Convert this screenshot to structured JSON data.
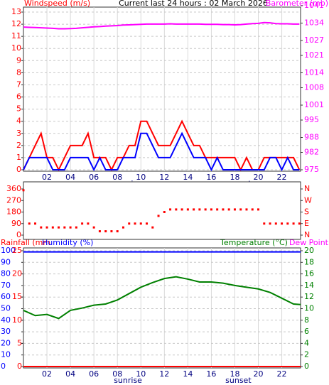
{
  "chart_data": [
    {
      "type": "line",
      "title": "Current last 24 hours : 02 March 2026",
      "ylabel": "Windspeed (m/s)",
      "y2label": "Barometer (mb)",
      "x": [
        0,
        0.5,
        1,
        1.5,
        2,
        2.5,
        3,
        3.5,
        4,
        4.5,
        5,
        5.5,
        6,
        6.5,
        7,
        7.5,
        8,
        8.5,
        9,
        9.5,
        10,
        10.5,
        11,
        11.5,
        12,
        12.5,
        13,
        13.5,
        14,
        14.5,
        15,
        15.5,
        16,
        16.5,
        17,
        17.5,
        18,
        18.5,
        19,
        19.5,
        20,
        20.5,
        21,
        21.5,
        22,
        22.5,
        23,
        23.5
      ],
      "series": [
        {
          "name": "Windspeed gust",
          "color": "#ff0000",
          "axis": "y",
          "values": [
            0,
            1,
            2,
            3,
            1,
            1,
            0,
            1,
            2,
            2,
            2,
            3,
            1,
            1,
            1,
            0,
            1,
            1,
            2,
            2,
            4,
            4,
            3,
            2,
            2,
            2,
            3,
            4,
            3,
            2,
            2,
            1,
            1,
            1,
            1,
            1,
            1,
            0,
            1,
            0,
            0,
            1,
            1,
            1,
            1,
            1,
            1,
            0
          ]
        },
        {
          "name": "Windspeed",
          "color": "#0000ff",
          "axis": "y",
          "values": [
            0,
            1,
            1,
            1,
            1,
            0,
            0,
            0,
            1,
            1,
            1,
            1,
            0,
            1,
            0,
            0,
            0,
            1,
            1,
            1,
            3,
            3,
            2,
            1,
            1,
            1,
            2,
            3,
            2,
            1,
            1,
            1,
            0,
            1,
            0,
            0,
            0,
            0,
            0,
            0,
            0,
            0,
            1,
            1,
            0,
            1,
            0,
            0
          ]
        },
        {
          "name": "Barometer",
          "color": "#ff00ff",
          "axis": "y2",
          "values": [
            1032.4,
            1032.3,
            1032.2,
            1032.1,
            1032.0,
            1031.9,
            1031.7,
            1031.7,
            1031.8,
            1031.9,
            1032.1,
            1032.3,
            1032.5,
            1032.6,
            1032.8,
            1032.9,
            1033.0,
            1033.2,
            1033.3,
            1033.4,
            1033.5,
            1033.6,
            1033.6,
            1033.6,
            1033.6,
            1033.7,
            1033.6,
            1033.6,
            1033.6,
            1033.6,
            1033.6,
            1033.5,
            1033.5,
            1033.5,
            1033.4,
            1033.4,
            1033.3,
            1033.4,
            1033.6,
            1033.8,
            1033.9,
            1034.2,
            1034.1,
            1033.8,
            1033.7,
            1033.7,
            1033.6,
            1033.6
          ]
        }
      ],
      "xlim": [
        0,
        23.6
      ],
      "xticks": [
        {
          "value": 2,
          "label": "02"
        },
        {
          "value": 4,
          "label": "04"
        },
        {
          "value": 6,
          "label": "06"
        },
        {
          "value": 8,
          "label": "08"
        },
        {
          "value": 10,
          "label": "10"
        },
        {
          "value": 12,
          "label": "12"
        },
        {
          "value": 14,
          "label": "14"
        },
        {
          "value": 16,
          "label": "16"
        },
        {
          "value": 18,
          "label": "18"
        },
        {
          "value": 20,
          "label": "20"
        },
        {
          "value": 22,
          "label": "22"
        }
      ],
      "ylim": [
        0,
        13
      ],
      "yticks": [
        0,
        1,
        2,
        3,
        4,
        5,
        6,
        7,
        8,
        9,
        10,
        11,
        12,
        13
      ],
      "ytick_color": "#ff0000",
      "y2lim": [
        975,
        1041
      ],
      "y2ticks": [
        975,
        982,
        988,
        995,
        1001,
        1008,
        1014,
        1021,
        1027,
        1034,
        1041
      ],
      "y2tick_color": "#ff00ff",
      "grid_axis": "y",
      "xgrid": true,
      "annotations": [
        {
          "text": "sunrise",
          "x": 8.9
        },
        {
          "text": "sunset",
          "x": 18.3
        }
      ]
    },
    {
      "type": "scatter",
      "x": [
        0,
        0.5,
        1,
        1.5,
        2,
        2.5,
        3,
        3.5,
        4,
        4.5,
        5,
        5.5,
        6,
        6.5,
        7,
        7.5,
        8,
        8.5,
        9,
        9.5,
        10,
        10.5,
        11,
        11.5,
        12,
        12.5,
        13,
        13.5,
        14,
        14.5,
        15,
        15.5,
        16,
        16.5,
        17,
        17.5,
        18,
        18.5,
        19,
        19.5,
        20,
        20.5,
        21,
        21.5,
        22,
        22.5,
        23,
        23.5
      ],
      "series": [
        {
          "name": "Wind direction",
          "color": "#ff0000",
          "axis": "y",
          "values": [
            350,
            90,
            90,
            60,
            60,
            60,
            60,
            60,
            60,
            60,
            90,
            90,
            60,
            30,
            30,
            30,
            30,
            60,
            90,
            90,
            90,
            90,
            60,
            150,
            180,
            200,
            200,
            200,
            200,
            200,
            200,
            200,
            200,
            200,
            200,
            200,
            200,
            200,
            200,
            200,
            200,
            90,
            90,
            90,
            90,
            90,
            90,
            90
          ]
        }
      ],
      "xlim": [
        0,
        23.6
      ],
      "ylim": [
        0,
        360
      ],
      "yticks": [
        0,
        90,
        180,
        270,
        360
      ],
      "ytick_color": "#ff0000",
      "y2lim": [
        0,
        360
      ],
      "y2ticks": [
        {
          "value": 0,
          "label": "N"
        },
        {
          "value": 90,
          "label": "E"
        },
        {
          "value": 180,
          "label": "S"
        },
        {
          "value": 270,
          "label": "W"
        },
        {
          "value": 360,
          "label": "N"
        }
      ],
      "y2tick_color": "#ff0000"
    },
    {
      "type": "line",
      "ylabel": "Humidity (%)",
      "y3label": "Rainfall (mm",
      "y2label": "Temperature (°C)",
      "dewpoint_label": "Dew Point",
      "x": [
        0,
        1,
        2,
        3,
        4,
        5,
        6,
        7,
        8,
        9,
        10,
        11,
        12,
        13,
        14,
        15,
        16,
        17,
        18,
        19,
        20,
        21,
        22,
        23,
        23.6
      ],
      "series": [
        {
          "name": "Humidity",
          "color": "#0000ff",
          "axis": "y",
          "values": [
            99,
            99,
            99,
            99,
            99,
            99,
            99,
            99,
            99,
            99,
            99,
            99,
            99,
            99,
            99,
            99,
            99,
            99,
            99,
            99,
            99,
            99,
            99,
            99,
            99
          ]
        },
        {
          "name": "Rainfall",
          "color": "#ff0000",
          "axis": "y3",
          "values": [
            0,
            0,
            0,
            0,
            0,
            0,
            0,
            0,
            0,
            0,
            0,
            0,
            0,
            0,
            0,
            0,
            0,
            0,
            0,
            0,
            0,
            0,
            0,
            0,
            0
          ]
        },
        {
          "name": "Temperature",
          "color": "#008000",
          "axis": "y2",
          "values": [
            9.7,
            8.8,
            9.0,
            8.3,
            9.7,
            10.1,
            10.6,
            10.8,
            11.5,
            12.6,
            13.7,
            14.5,
            15.2,
            15.5,
            15.1,
            14.6,
            14.6,
            14.4,
            14.0,
            13.7,
            13.4,
            12.8,
            11.8,
            10.8,
            10.7
          ]
        }
      ],
      "xlim": [
        0,
        23.6
      ],
      "xticks": [
        {
          "value": 2,
          "label": "02"
        },
        {
          "value": 4,
          "label": "04"
        },
        {
          "value": 6,
          "label": "06"
        },
        {
          "value": 8,
          "label": "08"
        },
        {
          "value": 10,
          "label": "10"
        },
        {
          "value": 12,
          "label": "12"
        },
        {
          "value": 14,
          "label": "14"
        },
        {
          "value": 16,
          "label": "16"
        },
        {
          "value": 18,
          "label": "18"
        },
        {
          "value": 20,
          "label": "20"
        },
        {
          "value": 22,
          "label": "22"
        }
      ],
      "ylim": [
        0,
        100
      ],
      "yticks": [
        0,
        10,
        20,
        30,
        40,
        50,
        60,
        70,
        80,
        90,
        100
      ],
      "ytick_color": "#0000ff",
      "y3lim": [
        0,
        25
      ],
      "y3ticks": [
        0,
        5,
        10,
        15,
        20,
        25
      ],
      "y3tick_color": "#ff0000",
      "y2lim": [
        0,
        20
      ],
      "y2ticks": [
        0,
        2,
        4,
        6,
        8,
        10,
        12,
        14,
        16,
        18,
        20
      ],
      "y2tick_color": "#008000",
      "grid_axis": "y2",
      "xgrid": true,
      "annotations": [
        {
          "text": "sunrise",
          "x": 8.9
        },
        {
          "text": "sunset",
          "x": 18.3
        }
      ]
    }
  ]
}
